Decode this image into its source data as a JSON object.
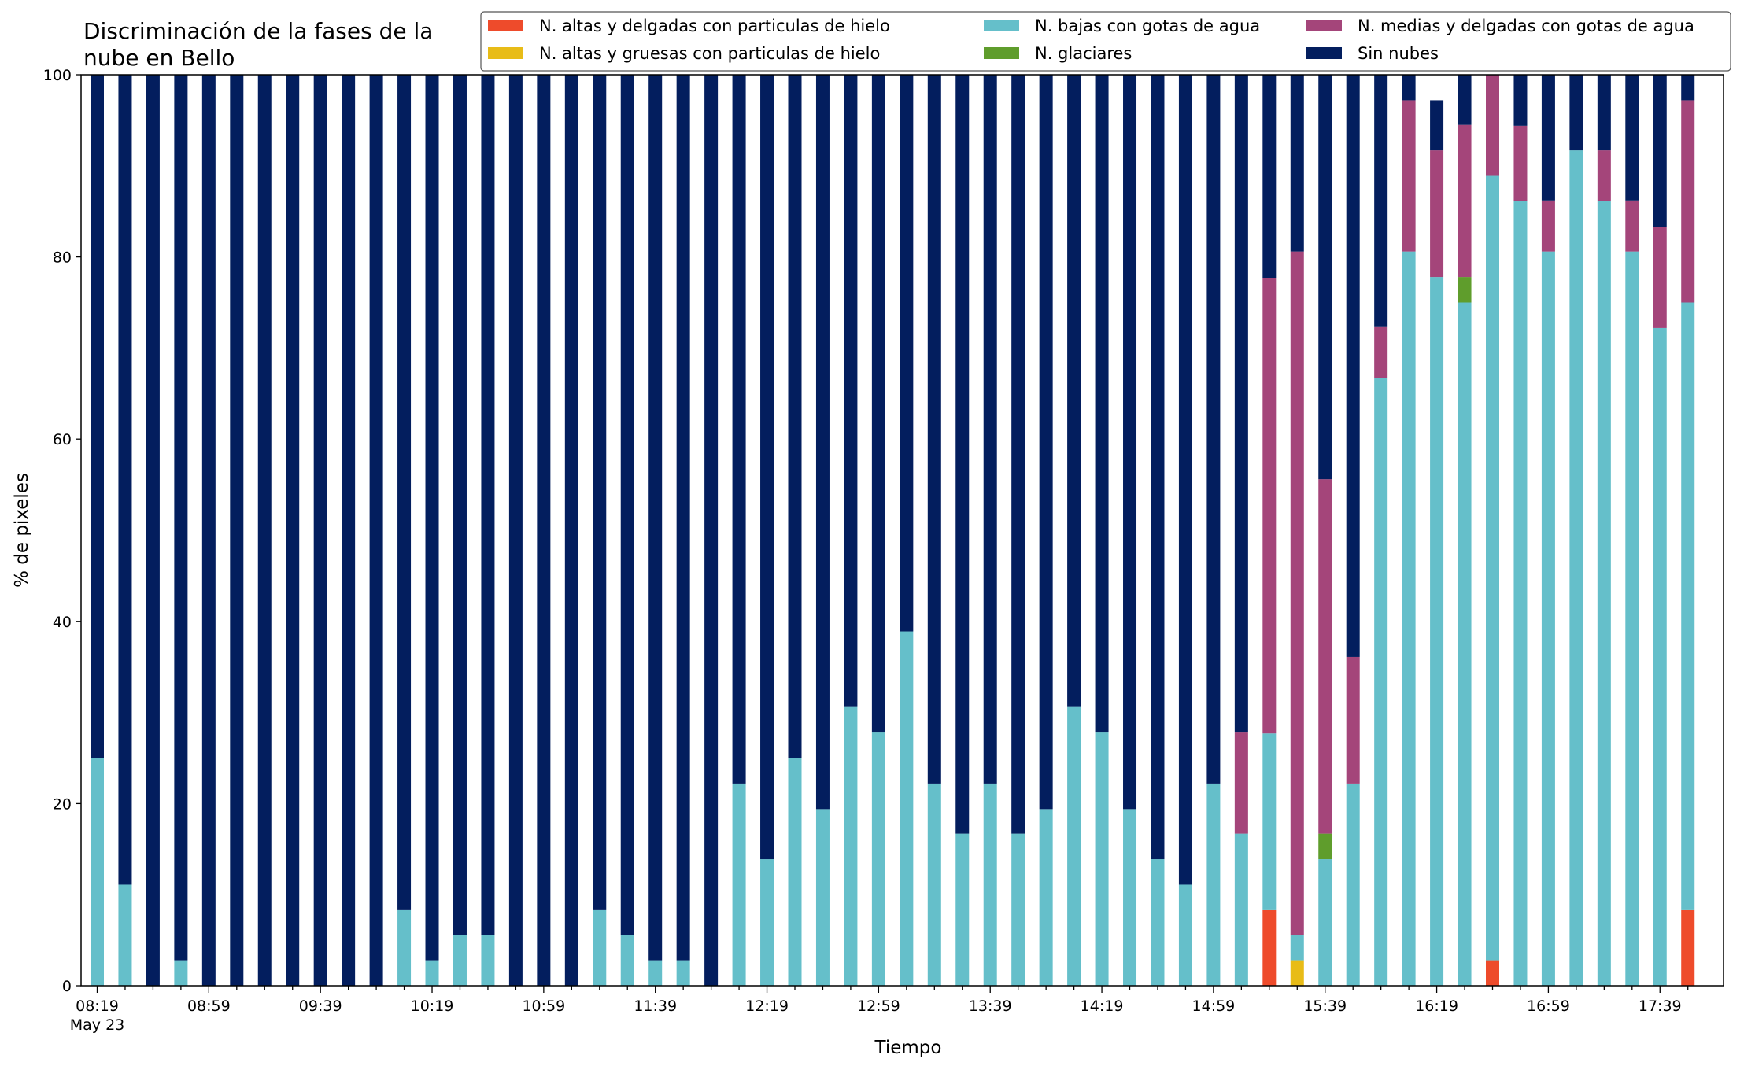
{
  "chart_data": {
    "type": "bar",
    "stacked": true,
    "title_lines": [
      "Discriminación de la fases de la",
      "nube en Bello"
    ],
    "xlabel": "Tiempo",
    "ylabel": "% de pixeles",
    "ylim": [
      0,
      100
    ],
    "yticks": [
      0,
      20,
      40,
      60,
      80,
      100
    ],
    "grid": false,
    "legend_position": "top-right",
    "x": [
      "08:19",
      "08:29",
      "08:39",
      "08:49",
      "08:59",
      "09:09",
      "09:19",
      "09:29",
      "09:39",
      "09:49",
      "09:59",
      "10:09",
      "10:19",
      "10:29",
      "10:39",
      "10:49",
      "10:59",
      "11:09",
      "11:19",
      "11:29",
      "11:39",
      "11:49",
      "11:59",
      "12:09",
      "12:19",
      "12:29",
      "12:39",
      "12:49",
      "12:59",
      "13:09",
      "13:19",
      "13:29",
      "13:39",
      "13:49",
      "13:59",
      "14:09",
      "14:19",
      "14:29",
      "14:39",
      "14:49",
      "14:59",
      "15:09",
      "15:19",
      "15:29",
      "15:39",
      "15:49",
      "15:59",
      "16:09",
      "16:19",
      "16:29",
      "16:39",
      "16:49",
      "16:59",
      "17:09",
      "17:19",
      "17:29",
      "17:39",
      "17:49"
    ],
    "xtick_labels": [
      {
        "label": "08:19",
        "sub": "May 23"
      },
      {
        "label": "08:59",
        "sub": ""
      },
      {
        "label": "09:39",
        "sub": ""
      },
      {
        "label": "10:19",
        "sub": ""
      },
      {
        "label": "10:59",
        "sub": ""
      },
      {
        "label": "11:39",
        "sub": ""
      },
      {
        "label": "12:19",
        "sub": ""
      },
      {
        "label": "12:59",
        "sub": ""
      },
      {
        "label": "13:39",
        "sub": ""
      },
      {
        "label": "14:19",
        "sub": ""
      },
      {
        "label": "14:59",
        "sub": ""
      },
      {
        "label": "15:39",
        "sub": ""
      },
      {
        "label": "16:19",
        "sub": ""
      },
      {
        "label": "16:59",
        "sub": ""
      },
      {
        "label": "17:39",
        "sub": ""
      }
    ],
    "series": [
      {
        "name": "N. altas y delgadas con particulas de hielo",
        "color": "#ee4b2b",
        "values": [
          0,
          0,
          0,
          0,
          0,
          0,
          0,
          0,
          0,
          0,
          0,
          0,
          0,
          0,
          0,
          0,
          0,
          0,
          0,
          0,
          0,
          0,
          0,
          0,
          0,
          0,
          0,
          0,
          0,
          0,
          0,
          0,
          0,
          0,
          0,
          0,
          0,
          0,
          0,
          0,
          0,
          0,
          8.3,
          0,
          0,
          0,
          0,
          0,
          0,
          0,
          2.8,
          0,
          0,
          0,
          0,
          0,
          0,
          8.3
        ]
      },
      {
        "name": "N. altas y gruesas con particulas de hielo",
        "color": "#e8bc17",
        "values": [
          0,
          0,
          0,
          0,
          0,
          0,
          0,
          0,
          0,
          0,
          0,
          0,
          0,
          0,
          0,
          0,
          0,
          0,
          0,
          0,
          0,
          0,
          0,
          0,
          0,
          0,
          0,
          0,
          0,
          0,
          0,
          0,
          0,
          0,
          0,
          0,
          0,
          0,
          0,
          0,
          0,
          0,
          0,
          2.8,
          0,
          0,
          0,
          0,
          0,
          0,
          0,
          0,
          0,
          0,
          0,
          0,
          0,
          0
        ]
      },
      {
        "name": "N. bajas con gotas de agua",
        "color": "#65bfca",
        "values": [
          25,
          11.1,
          0,
          2.8,
          0,
          0,
          0,
          0,
          0,
          0,
          0,
          8.3,
          2.8,
          5.6,
          5.6,
          0,
          0,
          0,
          8.3,
          5.6,
          2.8,
          2.8,
          0,
          22.2,
          13.9,
          25,
          19.4,
          30.6,
          27.8,
          38.9,
          22.2,
          16.7,
          22.2,
          16.7,
          19.4,
          30.6,
          27.8,
          19.4,
          13.9,
          11.1,
          22.2,
          16.7,
          19.4,
          2.8,
          13.9,
          22.2,
          66.7,
          80.6,
          77.8,
          75,
          86.1,
          86.1,
          80.6,
          91.7,
          86.1,
          80.6,
          72.2,
          66.7
        ]
      },
      {
        "name": "N. glaciares",
        "color": "#5f9d2c",
        "values": [
          0,
          0,
          0,
          0,
          0,
          0,
          0,
          0,
          0,
          0,
          0,
          0,
          0,
          0,
          0,
          0,
          0,
          0,
          0,
          0,
          0,
          0,
          0,
          0,
          0,
          0,
          0,
          0,
          0,
          0,
          0,
          0,
          0,
          0,
          0,
          0,
          0,
          0,
          0,
          0,
          0,
          0,
          0,
          0,
          2.8,
          0,
          0,
          0,
          0,
          2.8,
          0,
          0,
          0,
          0,
          0,
          0,
          0,
          0
        ]
      },
      {
        "name": "N. medias y delgadas con gotas de agua",
        "color": "#a4457a",
        "values": [
          0,
          0,
          0,
          0,
          0,
          0,
          0,
          0,
          0,
          0,
          0,
          0,
          0,
          0,
          0,
          0,
          0,
          0,
          0,
          0,
          0,
          0,
          0,
          0,
          0,
          0,
          0,
          0,
          0,
          0,
          0,
          0,
          0,
          0,
          0,
          0,
          0,
          0,
          0,
          0,
          0,
          11.1,
          50,
          75,
          38.9,
          13.9,
          5.6,
          16.6,
          13.9,
          16.7,
          13.9,
          8.3,
          5.6,
          0,
          5.6,
          5.6,
          11.1,
          22.2
        ]
      },
      {
        "name": "Sin nubes",
        "color": "#031e5e",
        "values": [
          75,
          88.9,
          100,
          97.2,
          100,
          100,
          100,
          100,
          100,
          100,
          100,
          91.7,
          97.2,
          94.4,
          94.4,
          100,
          100,
          100,
          91.7,
          94.4,
          97.2,
          97.2,
          100,
          77.8,
          86.1,
          75,
          80.6,
          69.4,
          72.2,
          61.1,
          77.8,
          83.3,
          77.8,
          83.3,
          80.6,
          69.4,
          72.2,
          80.6,
          86.1,
          88.9,
          77.8,
          72.2,
          22.3,
          19.4,
          44.4,
          63.9,
          27.7,
          2.8,
          5.5,
          5.5,
          0,
          5.6,
          13.8,
          8.3,
          8.3,
          13.8,
          16.7,
          2.8
        ]
      }
    ]
  }
}
